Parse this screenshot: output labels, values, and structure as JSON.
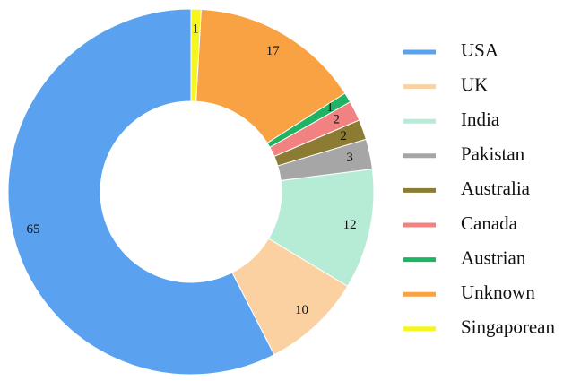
{
  "chart_data": {
    "type": "donut",
    "categories": [
      "USA",
      "UK",
      "India",
      "Pakistan",
      "Australia",
      "Canada",
      "Austrian",
      "Unknown",
      "Singaporean"
    ],
    "values": [
      65,
      10,
      12,
      3,
      2,
      2,
      1,
      17,
      1
    ],
    "colors": [
      "#5aa2f0",
      "#fcd1a2",
      "#b6ecd6",
      "#a6a6a6",
      "#8c7b32",
      "#f28282",
      "#1fb464",
      "#f9a243",
      "#f6f61e"
    ],
    "legend": "right"
  }
}
